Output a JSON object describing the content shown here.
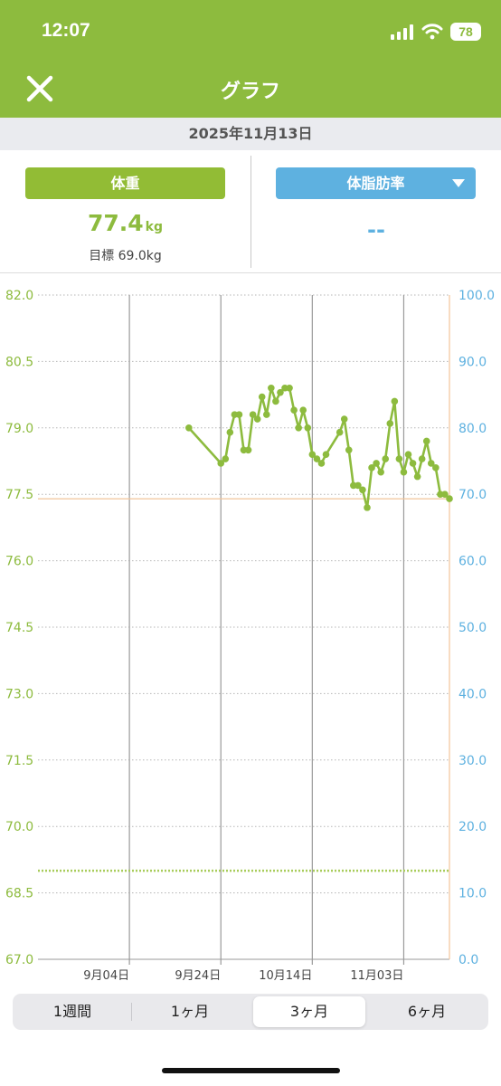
{
  "status_bar": {
    "time": "12:07",
    "battery": "78"
  },
  "header": {
    "title": "グラフ"
  },
  "date_bar": {
    "date": "2025年11月13日"
  },
  "weight_panel": {
    "tab_label": "体重",
    "value": "77.4",
    "unit": "kg",
    "goal": "目標 69.0kg"
  },
  "fat_panel": {
    "tab_label": "体脂肪率",
    "value": "--"
  },
  "range_tabs": {
    "items": [
      "1週間",
      "1ヶ月",
      "3ヶ月",
      "6ヶ月"
    ],
    "selected": "3ヶ月"
  },
  "colors": {
    "header": "#8dbb3e",
    "weight": "#8dbb3e",
    "fat": "#5eb1e0",
    "grid": "#aaaaaa",
    "goal_line": "#a8cc5a",
    "marker_line": "#f2c49a"
  },
  "icons": {
    "close": "close-icon",
    "dropdown": "chevron-down-icon",
    "signal": "signal-icon",
    "wifi": "wifi-icon",
    "battery": "battery-icon"
  },
  "chart_data": {
    "type": "line",
    "x_tick_labels": [
      "9月04日",
      "9月24日",
      "10月14日",
      "11月03日"
    ],
    "y_left": {
      "ticks": [
        "82.0",
        "80.5",
        "79.0",
        "77.5",
        "76.0",
        "74.5",
        "73.0",
        "71.5",
        "70.0",
        "68.5",
        "67.0"
      ],
      "range": [
        67.0,
        82.0
      ]
    },
    "y_right": {
      "ticks": [
        "100.0",
        "90.0",
        "80.0",
        "70.0",
        "60.0",
        "50.0",
        "40.0",
        "30.0",
        "20.0",
        "10.0",
        "0.0"
      ],
      "range": [
        0,
        100
      ]
    },
    "x_range": [
      "2025-08-15",
      "2025-11-13"
    ],
    "goal_weight": 69.0,
    "series": [
      {
        "x": [
          "2025-09-17",
          "2025-09-24",
          "2025-09-25",
          "2025-09-26",
          "2025-09-27",
          "2025-09-28",
          "2025-09-29",
          "2025-09-30",
          "2025-10-01",
          "2025-10-02",
          "2025-10-03",
          "2025-10-04",
          "2025-10-05",
          "2025-10-06",
          "2025-10-07",
          "2025-10-08",
          "2025-10-09",
          "2025-10-10",
          "2025-10-11",
          "2025-10-12",
          "2025-10-13",
          "2025-10-14",
          "2025-10-15",
          "2025-10-16",
          "2025-10-17",
          "2025-10-20",
          "2025-10-21",
          "2025-10-22",
          "2025-10-23",
          "2025-10-24",
          "2025-10-25",
          "2025-10-26",
          "2025-10-27",
          "2025-10-28",
          "2025-10-29",
          "2025-10-30",
          "2025-10-31",
          "2025-11-01",
          "2025-11-02",
          "2025-11-03",
          "2025-11-04",
          "2025-11-05",
          "2025-11-06",
          "2025-11-07",
          "2025-11-08",
          "2025-11-09",
          "2025-11-10",
          "2025-11-11",
          "2025-11-12",
          "2025-11-13"
        ],
        "values": [
          79.0,
          78.2,
          78.3,
          78.9,
          79.3,
          79.3,
          78.5,
          78.5,
          79.3,
          79.2,
          79.7,
          79.3,
          79.9,
          79.6,
          79.8,
          79.9,
          79.9,
          79.4,
          79.0,
          79.4,
          79.0,
          78.4,
          78.3,
          78.2,
          78.4,
          78.9,
          79.2,
          78.5,
          77.7,
          77.7,
          77.6,
          77.2,
          78.1,
          78.2,
          78.0,
          78.3,
          79.1,
          79.6,
          78.3,
          78.0,
          78.4,
          78.2,
          77.9,
          78.3,
          78.7,
          78.2,
          78.1,
          77.5,
          77.5,
          77.4
        ]
      }
    ]
  }
}
